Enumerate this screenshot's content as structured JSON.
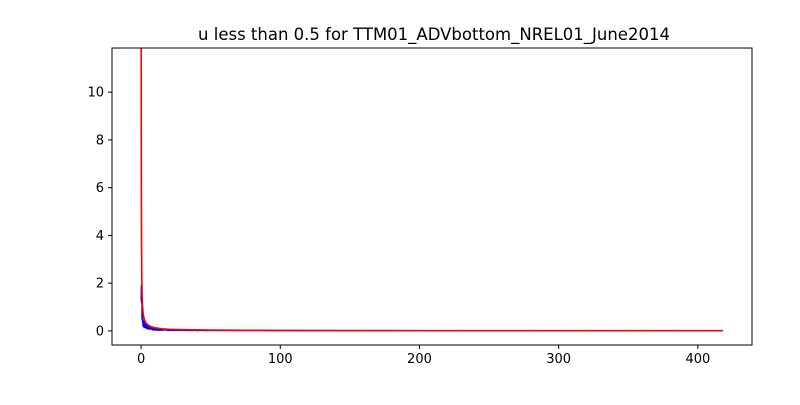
{
  "chart_data": {
    "type": "line",
    "title": "u less than 0.5  for TTM01_ADVbottom_NREL01_June2014",
    "xlabel": "",
    "ylabel": "",
    "xlim": [
      -20.9,
      438.9
    ],
    "ylim": [
      -0.59,
      11.85
    ],
    "x_ticks": [
      0,
      100,
      200,
      300,
      400
    ],
    "y_ticks": [
      0,
      2,
      4,
      6,
      8,
      10
    ],
    "grid": false,
    "legend": "none",
    "series": [
      {
        "color": "#0000ff",
        "style": "noisy",
        "x": [
          0,
          0.3,
          0.6,
          1,
          1.5,
          2,
          3,
          4,
          5,
          6,
          8,
          10,
          15,
          20,
          30,
          50,
          75,
          100,
          150,
          200,
          250,
          300,
          350,
          400,
          418
        ],
        "y": [
          1.3,
          2.65,
          1.0,
          0.5,
          0.35,
          0.3,
          0.22,
          0.18,
          0.15,
          0.12,
          0.09,
          0.07,
          0.05,
          0.04,
          0.03,
          0.02,
          0.02,
          0.015,
          0.01,
          0.01,
          0.01,
          0.01,
          0.01,
          0.01,
          0.01
        ]
      },
      {
        "color": "#ff0000",
        "style": "smooth",
        "x": [
          0.05,
          0.1,
          0.2,
          0.3,
          0.5,
          0.75,
          1,
          1.5,
          2,
          3,
          4,
          5,
          7,
          10,
          15,
          20,
          30,
          50,
          75,
          100,
          150,
          200,
          250,
          300,
          350,
          400,
          418
        ],
        "y": [
          11.85,
          9.5,
          6.0,
          4.0,
          2.3,
          1.5,
          1.05,
          0.72,
          0.55,
          0.38,
          0.3,
          0.25,
          0.18,
          0.13,
          0.09,
          0.07,
          0.05,
          0.035,
          0.025,
          0.02,
          0.015,
          0.012,
          0.01,
          0.01,
          0.01,
          0.01,
          0.01
        ]
      }
    ]
  }
}
